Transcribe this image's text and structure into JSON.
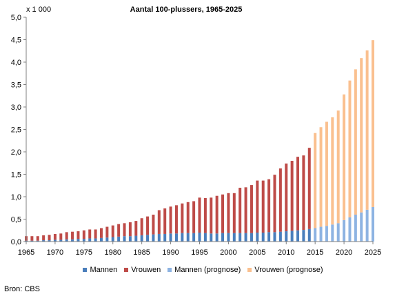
{
  "chart_data": {
    "type": "bar",
    "stacked": true,
    "title": "Aantal 100-plussers, 1965-2025",
    "unit_label": "x 1 000",
    "xlabel": "",
    "ylabel": "",
    "ylim": [
      0,
      5
    ],
    "y_ticks": [
      "0,0",
      "0,5",
      "1,0",
      "1,5",
      "2,0",
      "2,5",
      "3,0",
      "3,5",
      "4,0",
      "4,5",
      "5,0"
    ],
    "x_ticks": [
      "1965",
      "1970",
      "1975",
      "1980",
      "1985",
      "1990",
      "1995",
      "2000",
      "2005",
      "2010",
      "2015",
      "2020",
      "2025"
    ],
    "grid": false,
    "legend_position": "bottom",
    "categories": [
      1965,
      1966,
      1967,
      1968,
      1969,
      1970,
      1971,
      1972,
      1973,
      1974,
      1975,
      1976,
      1977,
      1978,
      1979,
      1980,
      1981,
      1982,
      1983,
      1984,
      1985,
      1986,
      1987,
      1988,
      1989,
      1990,
      1991,
      1992,
      1993,
      1994,
      1995,
      1996,
      1997,
      1998,
      1999,
      2000,
      2001,
      2002,
      2003,
      2004,
      2005,
      2006,
      2007,
      2008,
      2009,
      2010,
      2011,
      2012,
      2013,
      2014,
      2015,
      2016,
      2017,
      2018,
      2019,
      2020,
      2021,
      2022,
      2023,
      2024,
      2025
    ],
    "series": [
      {
        "name": "Mannen",
        "color": "#4a7ebb",
        "values": [
          0.02,
          0.02,
          0.02,
          0.03,
          0.03,
          0.04,
          0.04,
          0.05,
          0.05,
          0.06,
          0.06,
          0.07,
          0.07,
          0.08,
          0.09,
          0.1,
          0.11,
          0.12,
          0.12,
          0.13,
          0.14,
          0.15,
          0.16,
          0.17,
          0.17,
          0.18,
          0.18,
          0.19,
          0.19,
          0.19,
          0.2,
          0.19,
          0.18,
          0.18,
          0.19,
          0.19,
          0.19,
          0.19,
          0.19,
          0.19,
          0.2,
          0.2,
          0.21,
          0.21,
          0.22,
          0.23,
          0.24,
          0.25,
          0.26,
          0.28,
          null,
          null,
          null,
          null,
          null,
          null,
          null,
          null,
          null,
          null,
          null
        ]
      },
      {
        "name": "Vrouwen",
        "color": "#be4b48",
        "values": [
          0.1,
          0.1,
          0.1,
          0.11,
          0.12,
          0.13,
          0.14,
          0.16,
          0.17,
          0.17,
          0.19,
          0.2,
          0.2,
          0.22,
          0.24,
          0.26,
          0.28,
          0.29,
          0.31,
          0.33,
          0.38,
          0.41,
          0.44,
          0.53,
          0.57,
          0.6,
          0.63,
          0.66,
          0.69,
          0.71,
          0.78,
          0.78,
          0.8,
          0.84,
          0.86,
          0.89,
          0.89,
          1.01,
          1.02,
          1.07,
          1.16,
          1.16,
          1.18,
          1.28,
          1.41,
          1.51,
          1.56,
          1.64,
          1.66,
          1.81,
          null,
          null,
          null,
          null,
          null,
          null,
          null,
          null,
          null,
          null,
          null
        ]
      },
      {
        "name": "Mannen (prognose)",
        "color": "#8db3e2",
        "values": [
          null,
          null,
          null,
          null,
          null,
          null,
          null,
          null,
          null,
          null,
          null,
          null,
          null,
          null,
          null,
          null,
          null,
          null,
          null,
          null,
          null,
          null,
          null,
          null,
          null,
          null,
          null,
          null,
          null,
          null,
          null,
          null,
          null,
          null,
          null,
          null,
          null,
          null,
          null,
          null,
          null,
          null,
          null,
          null,
          null,
          null,
          null,
          null,
          null,
          null,
          0.3,
          0.33,
          0.35,
          0.38,
          0.41,
          0.48,
          0.54,
          0.6,
          0.65,
          0.71,
          0.77
        ]
      },
      {
        "name": "Vrouwen (prognose)",
        "color": "#fac08f",
        "values": [
          null,
          null,
          null,
          null,
          null,
          null,
          null,
          null,
          null,
          null,
          null,
          null,
          null,
          null,
          null,
          null,
          null,
          null,
          null,
          null,
          null,
          null,
          null,
          null,
          null,
          null,
          null,
          null,
          null,
          null,
          null,
          null,
          null,
          null,
          null,
          null,
          null,
          null,
          null,
          null,
          null,
          null,
          null,
          null,
          null,
          null,
          null,
          null,
          null,
          null,
          2.12,
          2.22,
          2.32,
          2.39,
          2.51,
          2.8,
          3.05,
          3.24,
          3.44,
          3.55,
          3.72
        ]
      }
    ]
  },
  "source": "Bron: CBS"
}
